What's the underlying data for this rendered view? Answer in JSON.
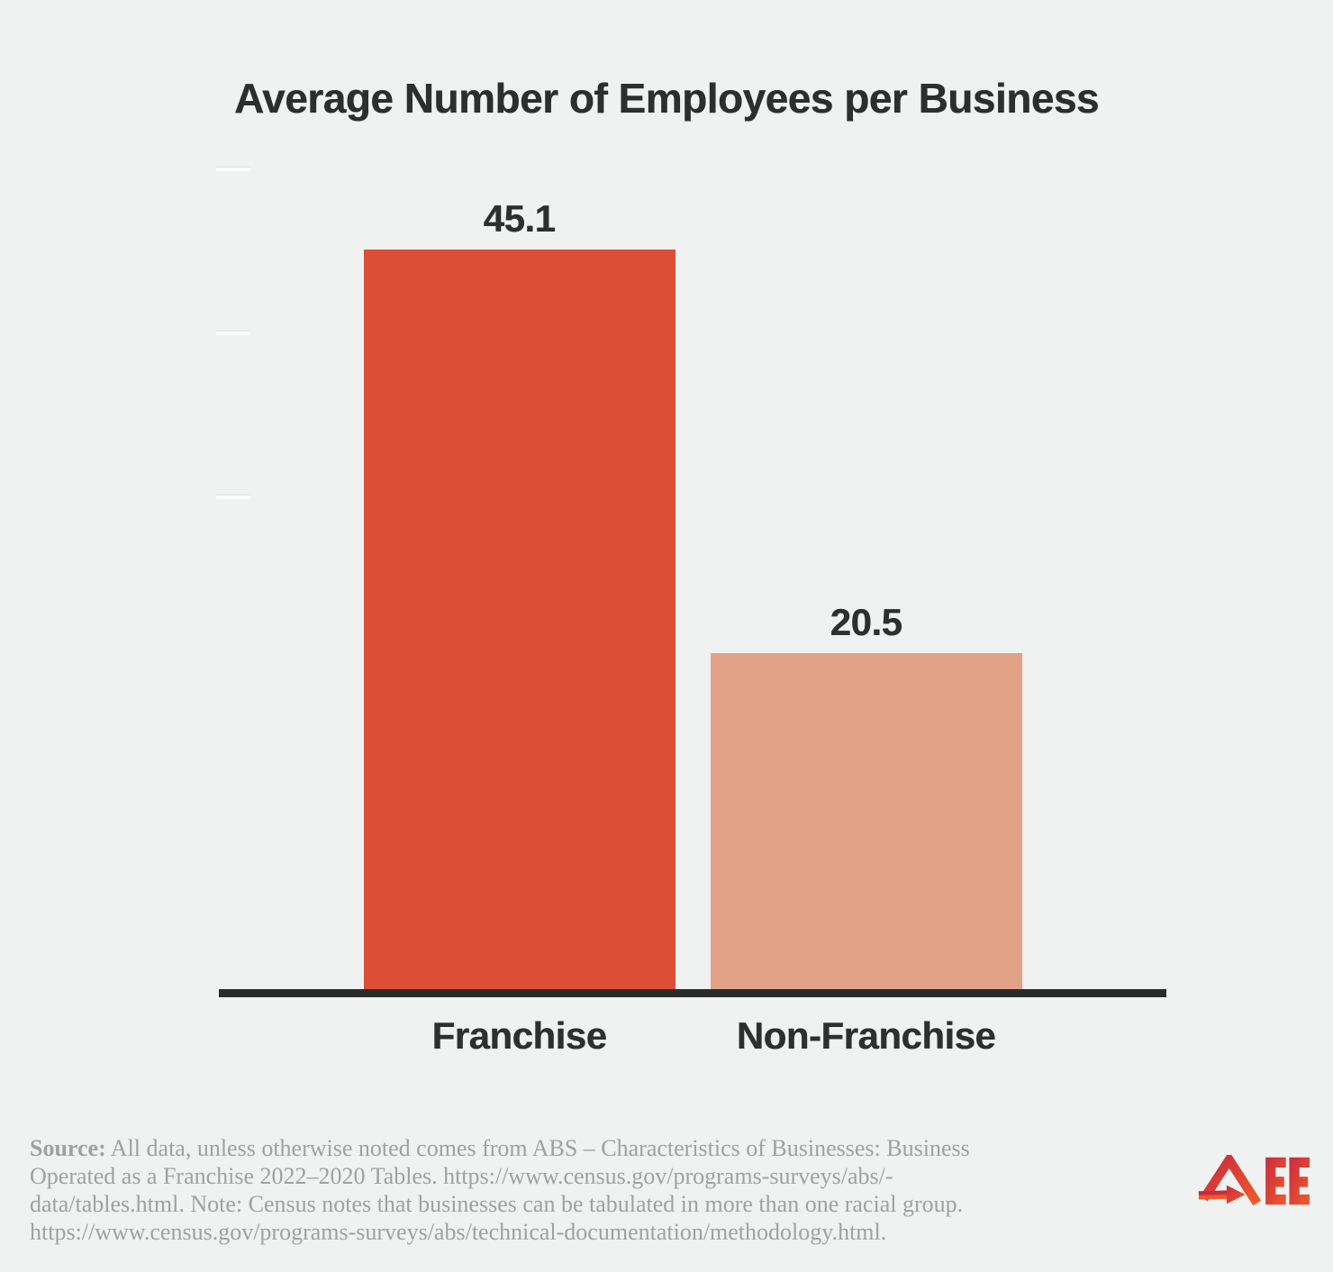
{
  "title": "Average Number of Employees per Business",
  "chart_data": {
    "type": "bar",
    "title": "Average Number of Employees per Business",
    "categories": [
      "Franchise",
      "Non-Franchise"
    ],
    "values": [
      45.1,
      20.5
    ],
    "value_labels": [
      "45.1",
      "20.5"
    ],
    "bar_colors": [
      "#DD4E36",
      "#E2A287"
    ],
    "xlabel": "",
    "ylabel": "",
    "ylim": [
      0,
      50
    ],
    "yticks": [
      30,
      40,
      50
    ],
    "grid": "faint tick stubs only, no labels",
    "legend_position": "none",
    "axis_line_color": "#2B2B2B"
  },
  "source": {
    "prefix": "Source:",
    "lines": [
      " All data, unless otherwise noted comes from ABS – Characteristics of Businesses: Business",
      "Operated as a Franchise 2022–2020 Tables. https://www.census.gov/programs-surveys/abs/-",
      "data/tables.html. Note: Census notes that businesses can be tabulated in more than one racial group.",
      "https://www.census.gov/programs-surveys/abs/technical-documentation/methodology.html."
    ]
  },
  "logo": {
    "name": "AEE",
    "gradient_start": "#C92B40",
    "gradient_end": "#F05A2B"
  },
  "colors": {
    "background": "#F0F2F1",
    "title_text": "#2D2E2E",
    "label_text": "#2F2F2F",
    "source_text": "#9EA2A2",
    "axis": "#2B2B2B"
  }
}
